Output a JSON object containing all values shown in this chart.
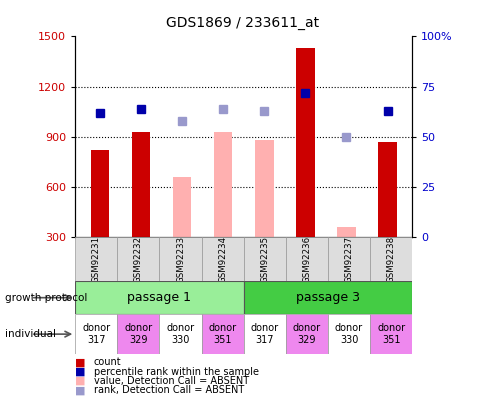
{
  "title": "GDS1869 / 233611_at",
  "samples": [
    "GSM92231",
    "GSM92232",
    "GSM92233",
    "GSM92234",
    "GSM92235",
    "GSM92236",
    "GSM92237",
    "GSM92238"
  ],
  "count_values": [
    820,
    930,
    null,
    null,
    null,
    1430,
    null,
    870
  ],
  "absent_values": [
    null,
    null,
    660,
    930,
    880,
    null,
    360,
    null
  ],
  "percentile_present": [
    62,
    64,
    null,
    null,
    null,
    72,
    null,
    63
  ],
  "percentile_absent": [
    null,
    null,
    58,
    64,
    63,
    null,
    50,
    null
  ],
  "ylim_left": [
    300,
    1500
  ],
  "ylim_right": [
    0,
    100
  ],
  "yticks_left": [
    300,
    600,
    900,
    1200,
    1500
  ],
  "yticks_right": [
    0,
    25,
    50,
    75,
    100
  ],
  "individuals": [
    "donor\n317",
    "donor\n329",
    "donor\n330",
    "donor\n351",
    "donor\n317",
    "donor\n329",
    "donor\n330",
    "donor\n351"
  ],
  "individual_colors": [
    "white",
    "#ee88ee",
    "white",
    "#ee88ee",
    "white",
    "#ee88ee",
    "white",
    "#ee88ee"
  ],
  "color_count": "#cc0000",
  "color_absent_bar": "#ffb0b0",
  "color_percentile_present": "#0000aa",
  "color_percentile_absent": "#9999cc",
  "color_passage1": "#99ee99",
  "color_passage3": "#44cc44",
  "bar_width": 0.45,
  "legend_labels": [
    "count",
    "percentile rank within the sample",
    "value, Detection Call = ABSENT",
    "rank, Detection Call = ABSENT"
  ],
  "legend_colors": [
    "#cc0000",
    "#0000aa",
    "#ffb0b0",
    "#9999cc"
  ]
}
